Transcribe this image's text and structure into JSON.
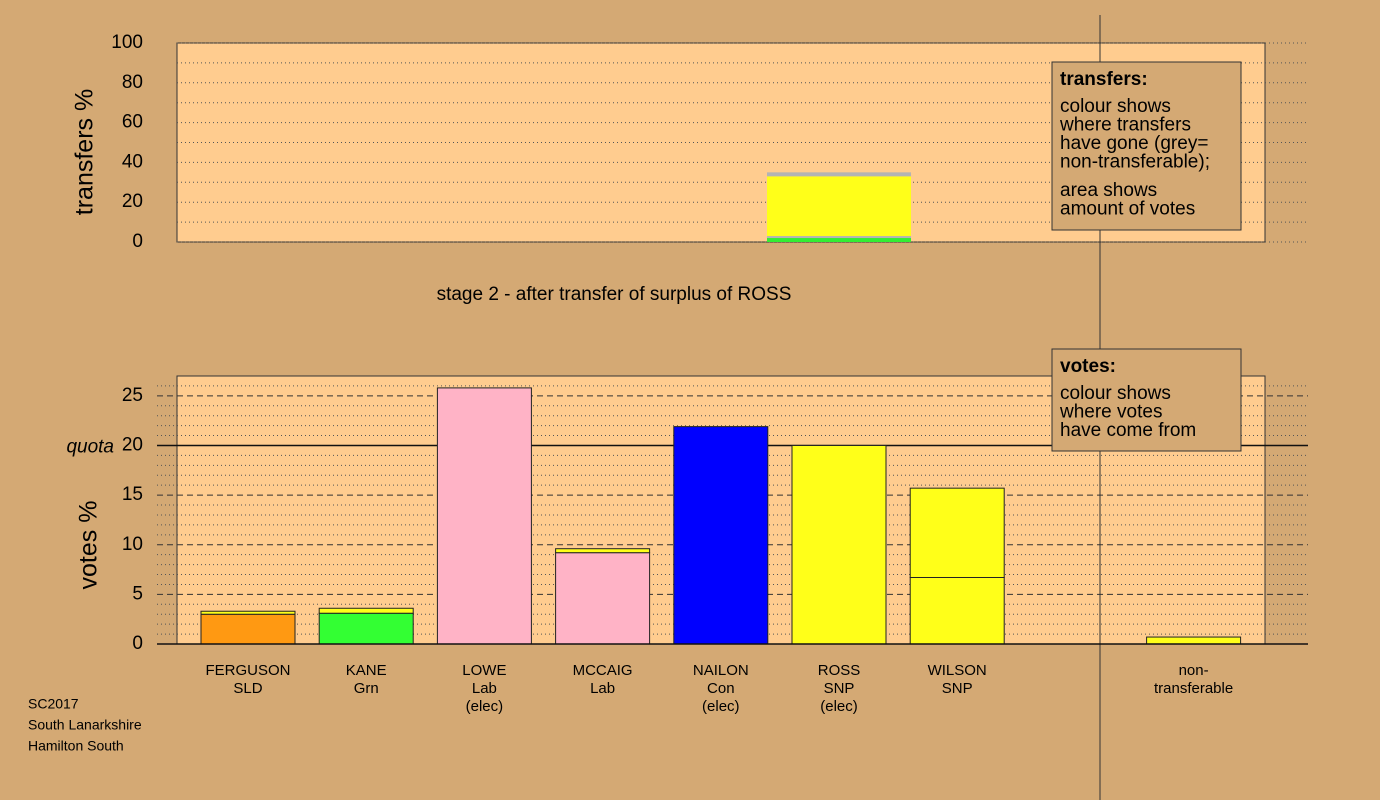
{
  "chart_data": [
    {
      "type": "stacked-bar",
      "ylabel": "transfers %",
      "ylim": [
        0,
        100
      ],
      "yticks": [
        0,
        20,
        40,
        60,
        80,
        100
      ],
      "minor_yticks": [
        10,
        30,
        50,
        70,
        90
      ],
      "stacks": [
        null,
        null,
        null,
        null,
        null,
        {
          "values": [
            2,
            1,
            30,
            2
          ],
          "colors": [
            "#33ee33",
            "#b4b4b4",
            "#ffff19",
            "#b4b4b4"
          ]
        },
        null,
        null,
        null
      ],
      "legend": {
        "title": "transfers:",
        "paragraphs": [
          [
            "colour shows",
            "where transfers",
            "have gone (grey=",
            "non-transferable);"
          ],
          [
            "area shows",
            "amount of votes"
          ]
        ]
      }
    },
    {
      "type": "stacked-bar",
      "title": "stage 2 - after transfer of surplus of ROSS",
      "ylabel": "votes %",
      "ylim": [
        0,
        27
      ],
      "yticks": [
        0,
        5,
        10,
        15,
        20,
        25
      ],
      "minor_yticks": [
        1,
        2,
        3,
        4,
        6,
        7,
        8,
        9,
        11,
        12,
        13,
        14,
        16,
        17,
        18,
        19,
        21,
        22,
        23,
        24,
        26
      ],
      "quota": {
        "value": 20,
        "label": "quota"
      },
      "categories": [
        [
          "FERGUSON",
          "SLD"
        ],
        [
          "KANE",
          "Grn"
        ],
        [
          "LOWE",
          "Lab",
          "(elec)"
        ],
        [
          "MCCAIG",
          "Lab"
        ],
        [
          "NAILON",
          "Con",
          "(elec)"
        ],
        [
          "ROSS",
          "SNP",
          "(elec)"
        ],
        [
          "WILSON",
          "SNP"
        ],
        null,
        [
          "non-",
          "transferable"
        ]
      ],
      "stacks": [
        {
          "values": [
            3.0,
            0.3
          ],
          "colors": [
            "#ff9912",
            "#ffff19"
          ]
        },
        {
          "values": [
            3.1,
            0.5
          ],
          "colors": [
            "#33ff33",
            "#ffff19"
          ]
        },
        {
          "values": [
            25.8
          ],
          "colors": [
            "#ffb3c6"
          ]
        },
        {
          "values": [
            9.2,
            0.4
          ],
          "colors": [
            "#ffb3c6",
            "#ffff19"
          ]
        },
        {
          "values": [
            21.9
          ],
          "colors": [
            "#0000ff"
          ]
        },
        {
          "values": [
            20.0
          ],
          "colors": [
            "#ffff19"
          ]
        },
        {
          "values": [
            6.7,
            9.0
          ],
          "colors": [
            "#ffff19",
            "#ffff19"
          ]
        },
        null,
        {
          "values": [
            0.7
          ],
          "colors": [
            "#ffff19"
          ]
        }
      ],
      "legend": {
        "title": "votes:",
        "paragraphs": [
          [
            "colour shows",
            "where votes",
            "have come from"
          ]
        ]
      }
    }
  ],
  "footer": [
    "SC2017",
    "South Lanarkshire",
    "Hamilton South"
  ]
}
